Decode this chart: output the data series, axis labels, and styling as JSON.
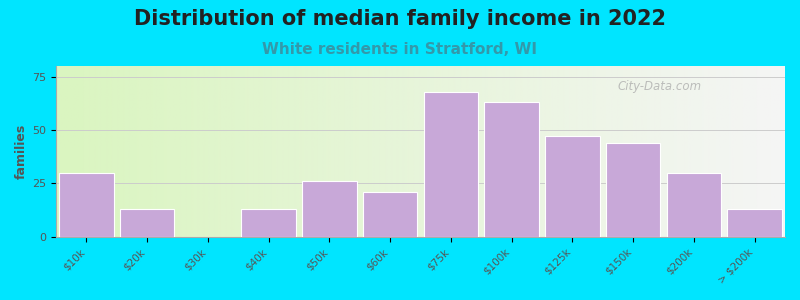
{
  "title": "Distribution of median family income in 2022",
  "subtitle": "White residents in Stratford, WI",
  "ylabel": "families",
  "categories": [
    "$10k",
    "$20k",
    "$30k",
    "$40k",
    "$50k",
    "$60k",
    "$75k",
    "$100k",
    "$125k",
    "$150k",
    "$200k",
    "> $200k"
  ],
  "values": [
    30,
    13,
    0,
    13,
    26,
    21,
    68,
    63,
    47,
    44,
    30,
    13
  ],
  "bar_color": "#c8a8d8",
  "bar_edgecolor": "#ffffff",
  "background_outer": "#00e5ff",
  "yticks": [
    0,
    25,
    50,
    75
  ],
  "ylim": [
    0,
    80
  ],
  "title_fontsize": 15,
  "subtitle_fontsize": 11,
  "subtitle_color": "#3399aa",
  "ylabel_color": "#555555",
  "watermark": "City-Data.com"
}
